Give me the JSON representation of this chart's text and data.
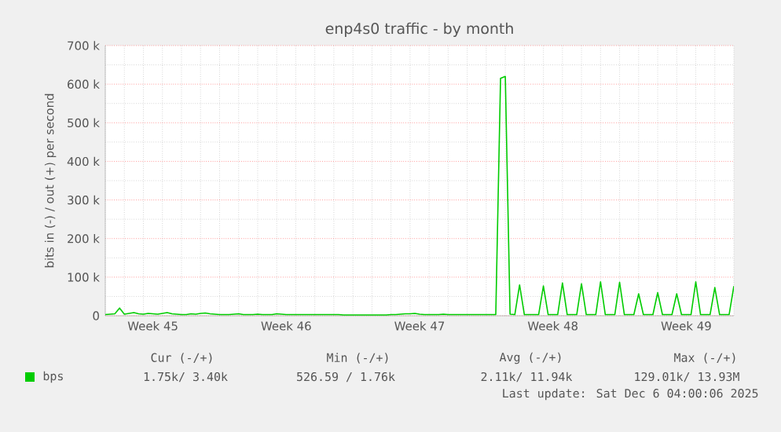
{
  "chart_data": {
    "type": "line",
    "title": "enp4s0 traffic - by month",
    "ylabel": "bits in (-) / out (+) per second",
    "categories": [
      null,
      null,
      null,
      null,
      null,
      null,
      null,
      null,
      null,
      null,
      "Week 45",
      null,
      null,
      null,
      null,
      null,
      null,
      null,
      null,
      null,
      null,
      null,
      null,
      null,
      null,
      null,
      null,
      null,
      null,
      null,
      null,
      null,
      null,
      null,
      null,
      null,
      null,
      null,
      "Week 46",
      null,
      null,
      null,
      null,
      null,
      null,
      null,
      null,
      null,
      null,
      null,
      null,
      null,
      null,
      null,
      null,
      null,
      null,
      null,
      null,
      null,
      null,
      null,
      null,
      null,
      null,
      null,
      "Week 47",
      null,
      null,
      null,
      null,
      null,
      null,
      null,
      null,
      null,
      null,
      null,
      null,
      null,
      null,
      null,
      null,
      null,
      null,
      null,
      null,
      null,
      null,
      null,
      null,
      null,
      null,
      null,
      "Week 48",
      null,
      null,
      null,
      null,
      null,
      null,
      null,
      null,
      null,
      null,
      null,
      null,
      null,
      null,
      null,
      null,
      null,
      null,
      null,
      null,
      null,
      null,
      null,
      null,
      null,
      null,
      null,
      "Week 49",
      null,
      null,
      null,
      null,
      null,
      null,
      null,
      null,
      null,
      null
    ],
    "ylim": [
      0,
      700000
    ],
    "yticks": [
      {
        "value": 0,
        "label": "0"
      },
      {
        "value": 100000,
        "label": "100 k"
      },
      {
        "value": 200000,
        "label": "200 k"
      },
      {
        "value": 300000,
        "label": "300 k"
      },
      {
        "value": 400000,
        "label": "400 k"
      },
      {
        "value": 500000,
        "label": "500 k"
      },
      {
        "value": 600000,
        "label": "600 k"
      },
      {
        "value": 700000,
        "label": "700 k"
      }
    ],
    "grid": true,
    "legend": "bottom left",
    "series": [
      {
        "name": "bps",
        "color": "#00cc00",
        "values": [
          3000,
          4000,
          5000,
          20000,
          4000,
          6000,
          8000,
          5000,
          4000,
          6000,
          5000,
          4000,
          6000,
          8000,
          5000,
          4000,
          3000,
          3000,
          5000,
          4000,
          6000,
          7000,
          5000,
          4000,
          3000,
          3000,
          3000,
          4000,
          5000,
          3000,
          3000,
          3000,
          4000,
          3000,
          3000,
          3000,
          5000,
          4000,
          3000,
          3000,
          3000,
          3000,
          3000,
          3000,
          3000,
          3000,
          3000,
          3000,
          3000,
          3000,
          2000,
          2000,
          2000,
          2000,
          2000,
          2000,
          2000,
          2000,
          2000,
          2000,
          3000,
          3000,
          4000,
          5000,
          5000,
          6000,
          4000,
          3000,
          3000,
          3000,
          3000,
          4000,
          3000,
          3000,
          3000,
          3000,
          3000,
          3000,
          3000,
          3000,
          3000,
          3000,
          3000,
          615000,
          620000,
          4000,
          3000,
          80000,
          3000,
          3000,
          3000,
          3000,
          77000,
          3000,
          3000,
          3000,
          85000,
          3000,
          3000,
          3000,
          83000,
          3000,
          3000,
          3000,
          88000,
          3000,
          3000,
          3000,
          87000,
          3000,
          3000,
          3000,
          57000,
          3000,
          3000,
          3000,
          60000,
          3000,
          3000,
          3000,
          57000,
          3000,
          3000,
          3000,
          88000,
          3000,
          3000,
          3000,
          73000,
          3000,
          3000,
          3000,
          77000
        ]
      }
    ],
    "annotations": [
      "Cur (-/+)",
      "Min (-/+)",
      "Avg (-/+)",
      "Max (-/+)",
      "1.75k/ 3.40k",
      "526.59 / 1.76k",
      "2.11k/ 11.94k",
      "129.01k/ 13.93M",
      "Last update: Sat Dec 6 04:00:06 2025"
    ]
  }
}
